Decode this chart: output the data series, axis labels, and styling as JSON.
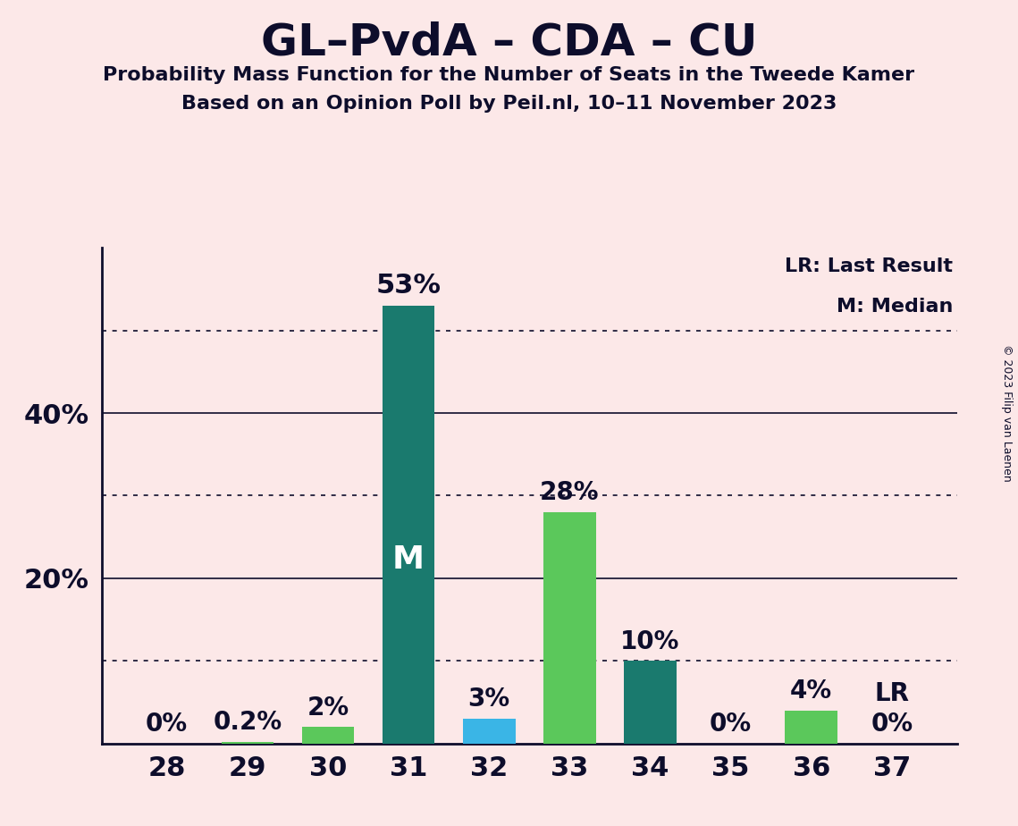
{
  "title": "GL–PvdA – CDA – CU",
  "subtitle1": "Probability Mass Function for the Number of Seats in the Tweede Kamer",
  "subtitle2": "Based on an Opinion Poll by Peil.nl, 10–11 November 2023",
  "copyright": "© 2023 Filip van Laenen",
  "categories": [
    28,
    29,
    30,
    31,
    32,
    33,
    34,
    35,
    36,
    37
  ],
  "values": [
    0.0,
    0.2,
    2.0,
    53.0,
    3.0,
    28.0,
    10.0,
    0.0,
    4.0,
    0.0
  ],
  "bar_colors": [
    "#5bc85b",
    "#5bc85b",
    "#5bc85b",
    "#1a7a6e",
    "#3ab5e6",
    "#5bc85b",
    "#1a7a6e",
    "#5bc85b",
    "#5bc85b",
    "#5bc85b"
  ],
  "median_bar": 31,
  "lr_bar": 37,
  "value_labels": [
    "0%",
    "0.2%",
    "2%",
    "53%",
    "3%",
    "28%",
    "10%",
    "0%",
    "4%",
    "0%"
  ],
  "background_color": "#fce8e8",
  "axis_color": "#0d0d2b",
  "grid_color": "#0d0d2b",
  "title_color": "#0d0d2b",
  "ylim": [
    0,
    60
  ],
  "yticks": [
    20,
    40
  ],
  "ytick_labels": [
    "20%",
    "40%"
  ],
  "dotted_yticks": [
    10,
    30,
    50
  ],
  "solid_yticks": [
    20,
    40
  ]
}
